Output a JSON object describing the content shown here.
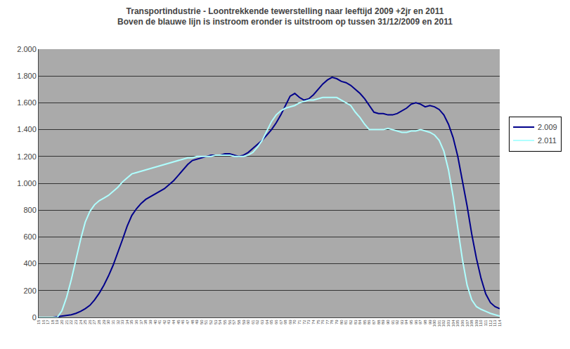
{
  "chart_data": {
    "type": "line",
    "title": "Transportindustrie - Loontrekkende tewerstelling naar leeftijd 2009 +2jr en 2011",
    "subtitle": "Boven de blauwe lijn is instroom eronder is uitstroom op tussen 31/12/2009 en 2011",
    "x": [
      15,
      16,
      17,
      18,
      19,
      20,
      21,
      22,
      23,
      24,
      25,
      26,
      27,
      28,
      29,
      30,
      31,
      32,
      33,
      34,
      35,
      36,
      37,
      38,
      39,
      40,
      41,
      42,
      43,
      44,
      45,
      46,
      47,
      48,
      49,
      50,
      51,
      52,
      53,
      54,
      55,
      56,
      57,
      58,
      59,
      60,
      61,
      62,
      63,
      64,
      65,
      66,
      67,
      68,
      69,
      70,
      71,
      72,
      73,
      74,
      75,
      76,
      77,
      78,
      79,
      80,
      81,
      82,
      83,
      84,
      85,
      86,
      87,
      88,
      89,
      90,
      91,
      92,
      93,
      94,
      95,
      96,
      97,
      98,
      99,
      100,
      101,
      102,
      103,
      104,
      105,
      106,
      107,
      108,
      109,
      110,
      111,
      112,
      113,
      114
    ],
    "series": [
      {
        "name": "2.009",
        "color": "#00008B",
        "values": [
          0,
          0,
          0,
          0,
          5,
          10,
          15,
          20,
          30,
          45,
          65,
          90,
          130,
          180,
          240,
          310,
          390,
          480,
          580,
          680,
          760,
          810,
          850,
          880,
          900,
          920,
          940,
          960,
          990,
          1020,
          1060,
          1100,
          1140,
          1170,
          1180,
          1190,
          1200,
          1210,
          1210,
          1210,
          1220,
          1220,
          1210,
          1200,
          1210,
          1230,
          1260,
          1290,
          1320,
          1360,
          1400,
          1450,
          1510,
          1580,
          1650,
          1670,
          1640,
          1620,
          1630,
          1660,
          1700,
          1740,
          1770,
          1790,
          1780,
          1760,
          1750,
          1730,
          1700,
          1670,
          1630,
          1580,
          1530,
          1520,
          1520,
          1510,
          1510,
          1520,
          1540,
          1560,
          1590,
          1600,
          1590,
          1570,
          1580,
          1570,
          1550,
          1510,
          1440,
          1340,
          1200,
          1020,
          830,
          620,
          440,
          290,
          175,
          110,
          80,
          65
        ]
      },
      {
        "name": "2.011",
        "color": "#AFFFFF",
        "values": [
          0,
          0,
          0,
          0,
          0,
          50,
          150,
          280,
          430,
          580,
          710,
          790,
          840,
          870,
          890,
          910,
          940,
          970,
          1010,
          1040,
          1070,
          1080,
          1090,
          1100,
          1110,
          1120,
          1130,
          1140,
          1150,
          1160,
          1170,
          1180,
          1190,
          1190,
          1200,
          1200,
          1200,
          1200,
          1210,
          1210,
          1210,
          1210,
          1200,
          1200,
          1200,
          1210,
          1230,
          1270,
          1320,
          1390,
          1460,
          1510,
          1540,
          1560,
          1570,
          1580,
          1600,
          1610,
          1620,
          1620,
          1630,
          1640,
          1640,
          1640,
          1640,
          1620,
          1600,
          1580,
          1530,
          1490,
          1440,
          1400,
          1400,
          1400,
          1400,
          1410,
          1400,
          1390,
          1380,
          1380,
          1390,
          1390,
          1400,
          1390,
          1380,
          1360,
          1320,
          1240,
          1100,
          900,
          660,
          430,
          240,
          130,
          80,
          60,
          45,
          30,
          20,
          10
        ]
      }
    ],
    "xlim": [
      15,
      114
    ],
    "xticks": [
      15,
      16,
      17,
      18,
      19,
      20,
      21,
      22,
      23,
      24,
      25,
      26,
      27,
      28,
      29,
      30,
      31,
      32,
      33,
      34,
      35,
      36,
      37,
      38,
      39,
      40,
      41,
      42,
      43,
      44,
      45,
      46,
      47,
      48,
      49,
      50,
      51,
      52,
      53,
      54,
      55,
      56,
      57,
      58,
      59,
      60,
      61,
      62,
      63,
      64,
      65,
      66,
      67,
      68,
      69,
      70,
      71,
      72,
      73,
      74,
      75,
      76,
      77,
      78,
      79,
      80,
      81,
      82,
      83,
      84,
      85,
      86,
      87,
      88,
      89,
      90,
      91,
      92,
      93,
      94,
      95,
      96,
      97,
      98,
      99,
      100,
      101,
      102,
      103,
      104,
      105,
      106,
      107,
      108,
      109,
      110,
      111,
      112,
      113,
      114
    ],
    "ylim": [
      0,
      2000
    ],
    "yticks": [
      0,
      200,
      400,
      600,
      800,
      {
        "value": 1000,
        "label": "1.000"
      },
      {
        "value": 1200,
        "label": "1.200"
      },
      {
        "value": 1400,
        "label": "1.400"
      },
      {
        "value": 1600,
        "label": "1.600"
      },
      {
        "value": 1800,
        "label": "1.800"
      },
      {
        "value": 2000,
        "label": "2.000"
      }
    ],
    "grid": true,
    "legend": "right"
  }
}
